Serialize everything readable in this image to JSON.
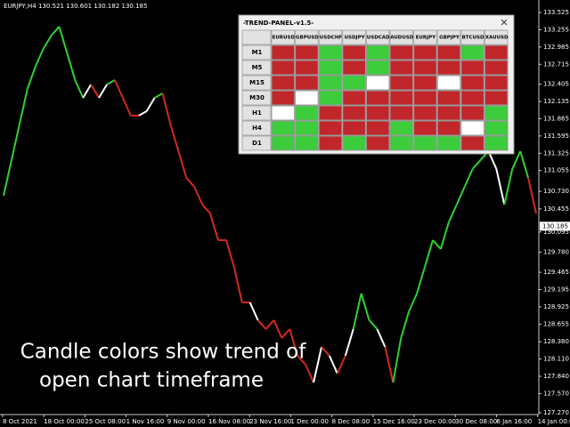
{
  "chart_data": {
    "type": "line",
    "title": "EURJPY,H4  130.521 130.601 130.182 130.185",
    "ylim": [
      127.27,
      133.525
    ],
    "yticks": [
      133.525,
      133.255,
      132.985,
      132.715,
      132.405,
      132.135,
      131.865,
      131.595,
      131.325,
      131.055,
      {
        "value": 130.73,
        "label": "130.730"
      },
      130.455,
      130.095,
      {
        "value": 129.78,
        "label": "129.780"
      },
      129.465,
      129.195,
      128.925,
      128.655,
      {
        "value": 128.38,
        "label": "128.380"
      },
      {
        "value": 128.11,
        "label": "128.110"
      },
      {
        "value": 127.84,
        "label": "127.840"
      },
      {
        "value": 127.57,
        "label": "127.570"
      },
      {
        "value": 127.27,
        "label": "127.270"
      }
    ],
    "date_labels": [
      "8 Oct 2021",
      "18 Oct 00:00",
      "25 Oct 08:00",
      "1 Nov 16:00",
      "9 Nov 00:00",
      "16 Nov 08:00",
      "23 Nov 16:00",
      "1 Dec 00:00",
      "8 Dec 08:00",
      "15 Dec 16:00",
      "23 Dec 00:00",
      "30 Dec 08:00",
      "6 Jan 16:00",
      "14 Jan 00:00"
    ],
    "current_price": 130.185,
    "series": [
      {
        "values": [
          130.662,
          131.218,
          131.774,
          132.33,
          132.677,
          132.955,
          133.164,
          133.303,
          132.886,
          132.469,
          132.191,
          132.399,
          132.191,
          132.399,
          132.469,
          132.191,
          131.913,
          131.913,
          131.982,
          132.191,
          132.26,
          131.774,
          131.357,
          130.94,
          130.801,
          130.523,
          130.384,
          129.967,
          129.967,
          129.55,
          128.994,
          128.994,
          128.716,
          128.577,
          128.716,
          128.438,
          128.577,
          128.16,
          128.021,
          127.743,
          128.299,
          128.16,
          127.882,
          128.16,
          128.577,
          129.133,
          128.716,
          128.577,
          128.299,
          127.743,
          128.438,
          128.855,
          129.133,
          129.55,
          129.967,
          129.828,
          130.245,
          130.523,
          130.801,
          131.079,
          131.218,
          131.357,
          131.079,
          130.523,
          131.079,
          131.357,
          130.94,
          130.384
        ],
        "point_colors": [
          "#2fd12f",
          "#2fd12f",
          "#2fd12f",
          "#2fd12f",
          "#2fd12f",
          "#2fd12f",
          "#2fd12f",
          "#2fd12f",
          "#2fd12f",
          "#2fd12f",
          "#2fd12f",
          "#ffffff",
          "#d32a1e",
          "#ffffff",
          "#2fd12f",
          "#d32a1e",
          "#d32a1e",
          "#d32a1e",
          "#ffffff",
          "#ffffff",
          "#2fd12f",
          "#d32a1e",
          "#d32a1e",
          "#d32a1e",
          "#d32a1e",
          "#d32a1e",
          "#d32a1e",
          "#d32a1e",
          "#d32a1e",
          "#d32a1e",
          "#d32a1e",
          "#d32a1e",
          "#ffffff",
          "#d32a1e",
          "#d32a1e",
          "#d32a1e",
          "#d32a1e",
          "#d32a1e",
          "#d32a1e",
          "#d32a1e",
          "#ffffff",
          "#d32a1e",
          "#ffffff",
          "#d32a1e",
          "#ffffff",
          "#2fd12f",
          "#2fd12f",
          "#2fd12f",
          "#ffffff",
          "#d32a1e",
          "#2fd12f",
          "#2fd12f",
          "#2fd12f",
          "#2fd12f",
          "#2fd12f",
          "#2fd12f",
          "#2fd12f",
          "#2fd12f",
          "#2fd12f",
          "#2fd12f",
          "#2fd12f",
          "#2fd12f",
          "#ffffff",
          "#ffffff",
          "#2fd12f",
          "#2fd12f",
          "#2fd12f",
          "#d32a1e"
        ]
      }
    ]
  },
  "panel": {
    "title": "-TREND-PANEL-v1.5-",
    "columns": [
      "EURUSD",
      "GBPUSD",
      "USDCHF",
      "USDJPY",
      "USDCAD",
      "AUDUSD",
      "EURJPY",
      "GBPJPY",
      "BTCUSD",
      "XAUUSD"
    ],
    "rows": [
      {
        "label": "M1",
        "colors": [
          "#c0262a",
          "#c0262a",
          "#3ccc3c",
          "#c0262a",
          "#3ccc3c",
          "#c0262a",
          "#c0262a",
          "#c0262a",
          "#3ccc3c",
          "#c0262a"
        ]
      },
      {
        "label": "M5",
        "colors": [
          "#c0262a",
          "#c0262a",
          "#3ccc3c",
          "#c0262a",
          "#3ccc3c",
          "#c0262a",
          "#c0262a",
          "#c0262a",
          "#c0262a",
          "#c0262a"
        ]
      },
      {
        "label": "M15",
        "colors": [
          "#c0262a",
          "#c0262a",
          "#3ccc3c",
          "#3ccc3c",
          "#ffffff",
          "#c0262a",
          "#c0262a",
          "#ffffff",
          "#c0262a",
          "#c0262a"
        ]
      },
      {
        "label": "M30",
        "colors": [
          "#c0262a",
          "#ffffff",
          "#3ccc3c",
          "#c0262a",
          "#c0262a",
          "#c0262a",
          "#c0262a",
          "#c0262a",
          "#c0262a",
          "#c0262a"
        ]
      },
      {
        "label": "H1",
        "colors": [
          "#ffffff",
          "#3ccc3c",
          "#c0262a",
          "#c0262a",
          "#c0262a",
          "#c0262a",
          "#c0262a",
          "#c0262a",
          "#c0262a",
          "#3ccc3c"
        ]
      },
      {
        "label": "H4",
        "colors": [
          "#3ccc3c",
          "#3ccc3c",
          "#c0262a",
          "#c0262a",
          "#c0262a",
          "#3ccc3c",
          "#c0262a",
          "#c0262a",
          "#ffffff",
          "#3ccc3c"
        ]
      },
      {
        "label": "D1",
        "colors": [
          "#3ccc3c",
          "#3ccc3c",
          "#c0262a",
          "#3ccc3c",
          "#c0262a",
          "#3ccc3c",
          "#3ccc3c",
          "#3ccc3c",
          "#c0262a",
          "#3ccc3c"
        ]
      }
    ]
  },
  "caption": [
    "Candle colors show trend of",
    "open chart timeframe"
  ]
}
